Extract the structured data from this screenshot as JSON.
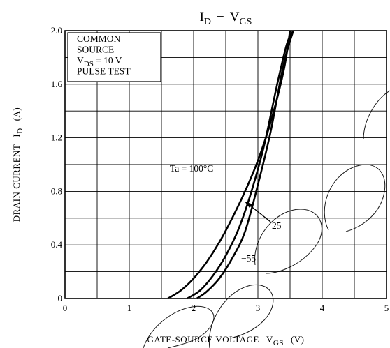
{
  "chart_data": {
    "type": "line",
    "title_parts": {
      "i": "I",
      "i_sub": "D",
      "dash": "−",
      "v": "V",
      "v_sub": "GS"
    },
    "xlabel_parts": {
      "main": "GATE-SOURCE VOLTAGE",
      "v": "V",
      "v_sub": "GS",
      "unit": "(V)"
    },
    "ylabel_parts": {
      "main": "DRAIN CURRENT",
      "i": "I",
      "i_sub": "D",
      "unit": "(A)"
    },
    "xlim": [
      0,
      5
    ],
    "ylim": [
      0,
      2.0
    ],
    "x_ticks": [
      "0",
      "1",
      "2",
      "3",
      "4",
      "5"
    ],
    "y_ticks": [
      "0",
      "0.4",
      "0.8",
      "1.2",
      "1.6",
      "2.0"
    ],
    "grid": true,
    "conditions": {
      "line1": "COMMON",
      "line2": "SOURCE",
      "line3_v": "V",
      "line3_sub": "DS",
      "line3_rest": " = 10 V",
      "line4": "PULSE TEST"
    },
    "series": [
      {
        "name": "Ta = 100°C",
        "x": [
          1.6,
          1.8,
          2.0,
          2.2,
          2.4,
          2.6,
          2.8,
          3.0,
          3.2,
          3.4,
          3.5
        ],
        "y": [
          0.0,
          0.06,
          0.15,
          0.27,
          0.42,
          0.6,
          0.8,
          1.03,
          1.32,
          1.7,
          2.0
        ]
      },
      {
        "name": "25",
        "x": [
          1.9,
          2.1,
          2.3,
          2.5,
          2.7,
          2.9,
          3.1,
          3.3,
          3.45,
          3.55
        ],
        "y": [
          0.0,
          0.06,
          0.17,
          0.32,
          0.52,
          0.8,
          1.15,
          1.6,
          1.9,
          2.0
        ]
      },
      {
        "name": "−55",
        "x": [
          2.05,
          2.2,
          2.4,
          2.6,
          2.8,
          3.0,
          3.2,
          3.4,
          3.55
        ],
        "y": [
          0.0,
          0.05,
          0.15,
          0.3,
          0.5,
          0.85,
          1.25,
          1.75,
          2.0
        ]
      }
    ],
    "annotations": {
      "ta_label": "Ta = 100°C",
      "label_25": "25",
      "label_m55": "−55"
    }
  }
}
